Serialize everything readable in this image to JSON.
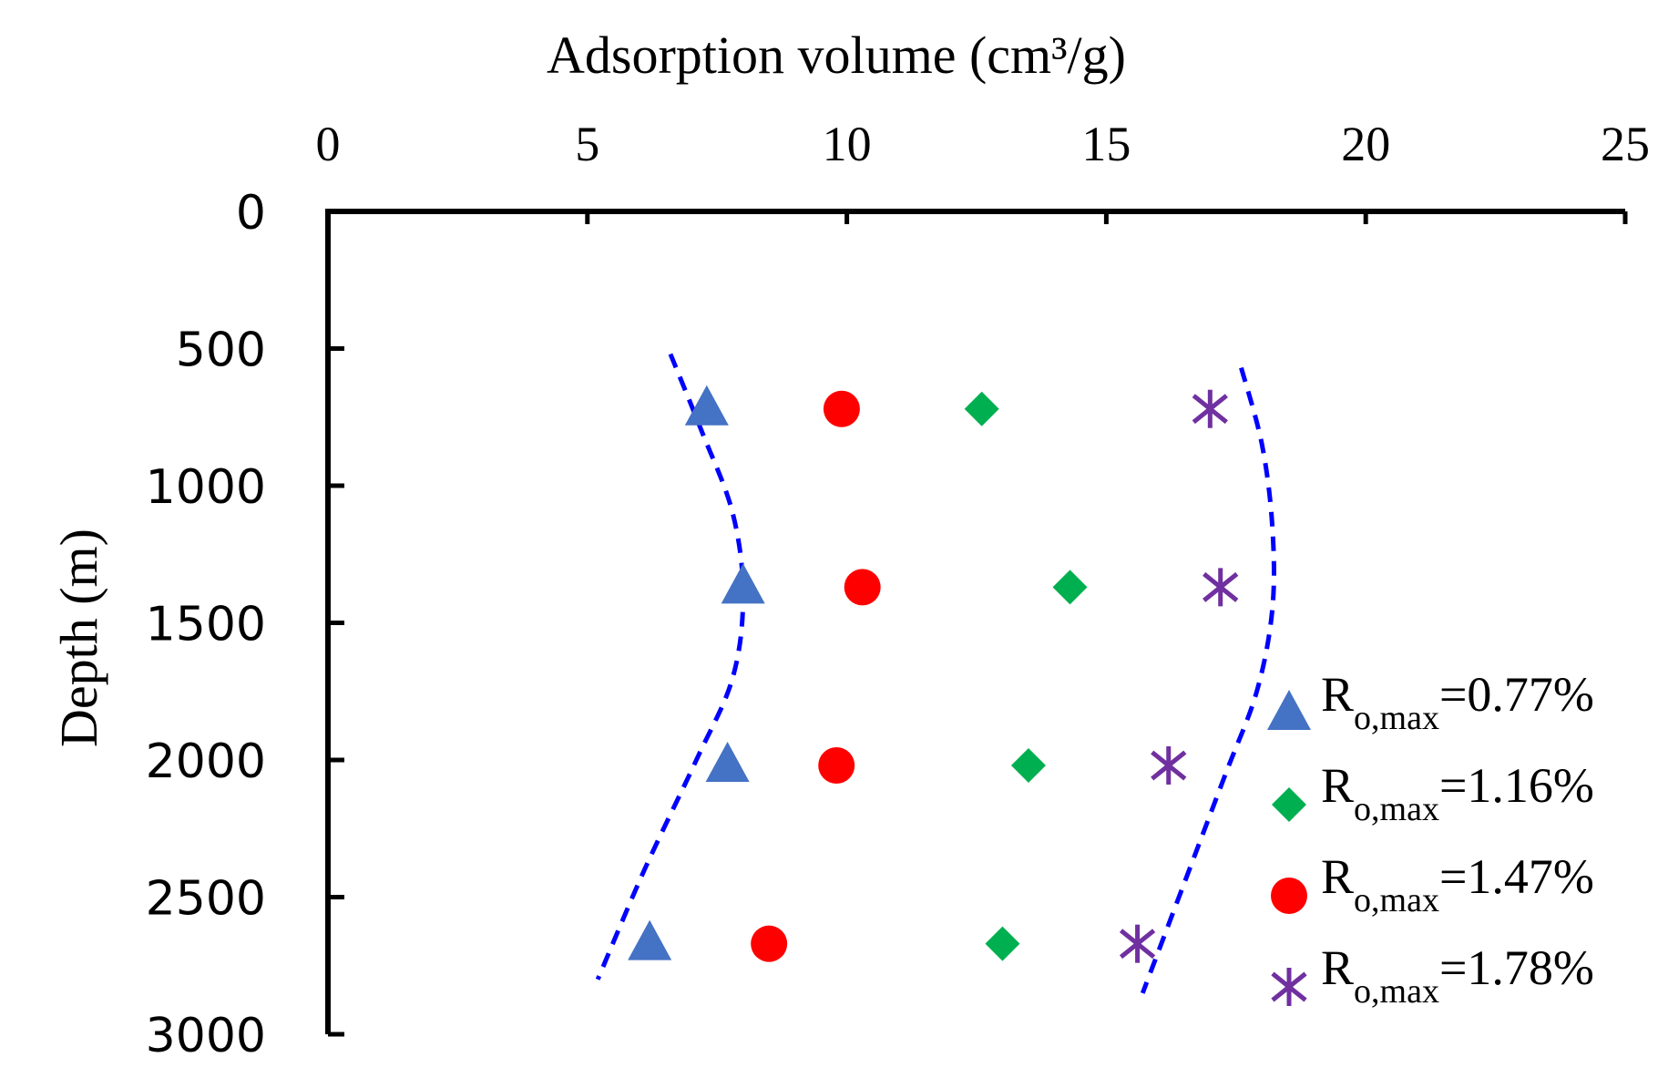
{
  "chart_data": {
    "type": "scatter",
    "title": "",
    "xlabel": "Adsorption volume (cm³/g)",
    "ylabel": "Depth (m)",
    "xlim": [
      0,
      25
    ],
    "ylim": [
      0,
      3000
    ],
    "y_inverted": true,
    "x_axis_position": "top",
    "x_ticks": [
      0,
      5,
      10,
      15,
      20,
      25
    ],
    "y_ticks": [
      0,
      500,
      1000,
      1500,
      2000,
      2500,
      3000
    ],
    "grid": false,
    "legend_position": "right",
    "series": [
      {
        "name": "Ro,max=0.77%",
        "label_main": "R",
        "label_sub": "o,max",
        "label_rest": "=0.77%",
        "marker": "triangle",
        "color": "#4472c4",
        "x": [
          7.3,
          8.0,
          7.7,
          6.2
        ],
        "y": [
          720,
          1370,
          2020,
          2670
        ]
      },
      {
        "name": "Ro,max=1.16%",
        "label_main": "R",
        "label_sub": "o,max",
        "label_rest": "=1.16%",
        "marker": "diamond",
        "color": "#00b050",
        "x": [
          12.6,
          14.3,
          13.5,
          13.0
        ],
        "y": [
          720,
          1370,
          2020,
          2670
        ]
      },
      {
        "name": "Ro,max=1.47%",
        "label_main": "R",
        "label_sub": "o,max",
        "label_rest": "=1.47%",
        "marker": "circle",
        "color": "#ff0000",
        "x": [
          9.9,
          10.3,
          9.8,
          8.5
        ],
        "y": [
          720,
          1370,
          2020,
          2670
        ]
      },
      {
        "name": "Ro,max=1.78%",
        "label_main": "R",
        "label_sub": "o,max",
        "label_rest": "=1.78%",
        "marker": "star",
        "color": "#7030a0",
        "x": [
          17.0,
          17.2,
          16.2,
          15.6
        ],
        "y": [
          720,
          1370,
          2020,
          2670
        ]
      }
    ],
    "trend_lines": [
      {
        "name": "left-envelope",
        "style": "dashed",
        "color": "#0000ff",
        "x": [
          6.6,
          7.2,
          7.8,
          8.0,
          7.8,
          7.1,
          6.1,
          5.2
        ],
        "y": [
          520,
          800,
          1100,
          1400,
          1700,
          2000,
          2400,
          2800
        ]
      },
      {
        "name": "right-envelope",
        "style": "dashed",
        "color": "#0000ff",
        "x": [
          17.6,
          18.0,
          18.2,
          18.2,
          17.9,
          17.3,
          16.5,
          15.7
        ],
        "y": [
          570,
          850,
          1150,
          1450,
          1750,
          2050,
          2450,
          2850
        ]
      }
    ]
  }
}
